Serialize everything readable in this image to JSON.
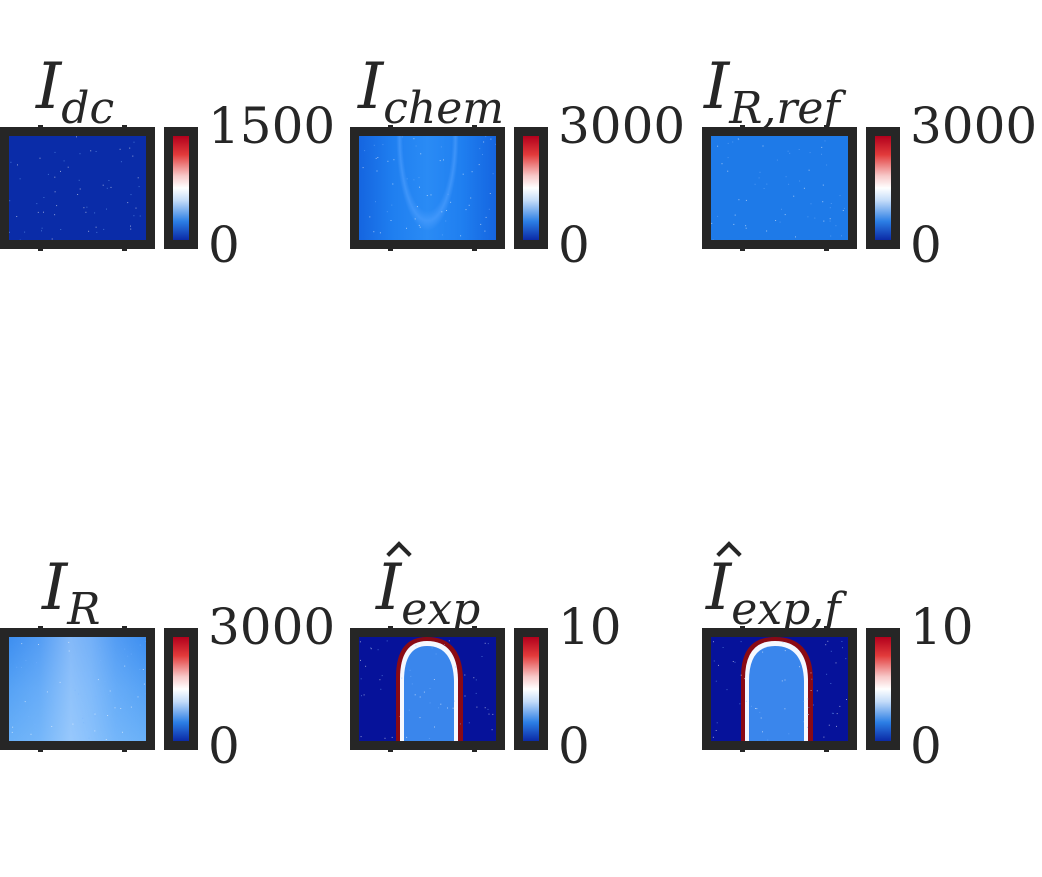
{
  "chart_data": [
    {
      "type": "heatmap",
      "title_base": "I",
      "title_sub": "dc",
      "hat": false,
      "colorbar": {
        "min_label": "0",
        "max_label": "1500",
        "min": 0,
        "max": 1500
      },
      "pattern": "uniform-low"
    },
    {
      "type": "heatmap",
      "title_base": "I",
      "title_sub": "chem",
      "hat": false,
      "colorbar": {
        "min_label": "0",
        "max_label": "3000",
        "min": 0,
        "max": 3000
      },
      "pattern": "faint-cone"
    },
    {
      "type": "heatmap",
      "title_base": "I",
      "title_sub": "R,ref",
      "hat": false,
      "colorbar": {
        "min_label": "0",
        "max_label": "3000",
        "min": 0,
        "max": 3000
      },
      "pattern": "uniform-mid"
    },
    {
      "type": "heatmap",
      "title_base": "I",
      "title_sub": "R",
      "hat": false,
      "colorbar": {
        "min_label": "0",
        "max_label": "3000",
        "min": 0,
        "max": 3000
      },
      "pattern": "bright-cone"
    },
    {
      "type": "heatmap",
      "title_base": "I",
      "title_sub": "exp",
      "hat": true,
      "colorbar": {
        "min_label": "0",
        "max_label": "10",
        "min": 0,
        "max": 10
      },
      "pattern": "flame"
    },
    {
      "type": "heatmap",
      "title_base": "I",
      "title_sub": "exp,f",
      "hat": true,
      "colorbar": {
        "min_label": "0",
        "max_label": "10",
        "min": 0,
        "max": 10
      },
      "pattern": "flame"
    }
  ]
}
